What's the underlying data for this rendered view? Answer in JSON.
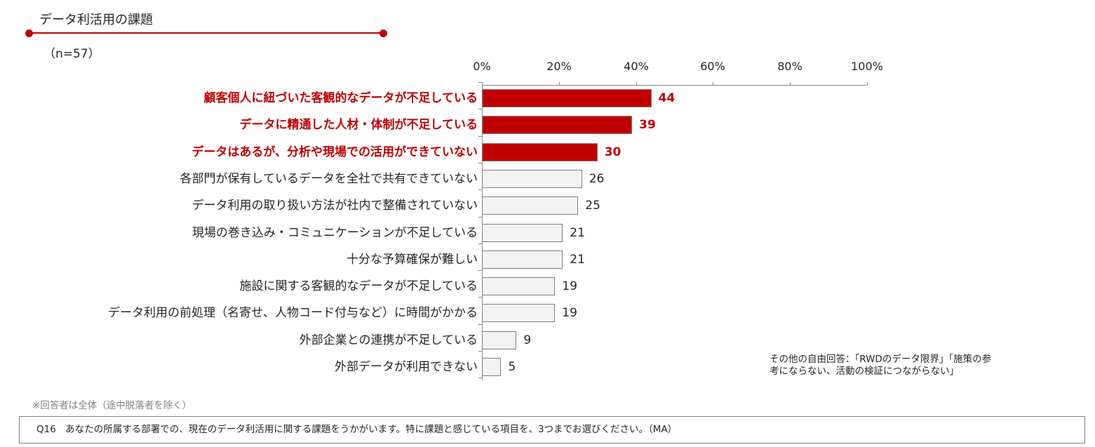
{
  "header": {
    "title": "データ利活用の課題",
    "sample": "（n=57）",
    "accent_color": "#c00000"
  },
  "chart_data": {
    "type": "bar",
    "orientation": "horizontal",
    "title": "データ利活用の課題",
    "subtitle": "（n=57）",
    "xlabel": "",
    "ylabel": "",
    "xlim": [
      0,
      100
    ],
    "x_ticks": [
      "0%",
      "20%",
      "40%",
      "60%",
      "80%",
      "100%"
    ],
    "unit": "%",
    "grid": false,
    "legend": null,
    "categories": [
      "顧客個人に紐づいた客観的なデータが不足している",
      "データに精通した人材・体制が不足している",
      "データはあるが、分析や現場での活用ができていない",
      "各部門が保有しているデータを全社で共有できていない",
      "データ利用の取り扱い方法が社内で整備されていない",
      "現場の巻き込み・コミュニケーションが不足している",
      "十分な予算確保が難しい",
      "施設に関する客観的なデータが不足している",
      "データ利用の前処理（名寄せ、人物コード付与など）に時間がかかる",
      "外部企業との連携が不足している",
      "外部データが利用できない"
    ],
    "values": [
      44,
      39,
      30,
      26,
      25,
      21,
      21,
      19,
      19,
      9,
      5
    ],
    "highlighted": [
      true,
      true,
      true,
      false,
      false,
      false,
      false,
      false,
      false,
      false,
      false
    ],
    "colors": {
      "highlight": "#c00000",
      "normal": "#f2f2f2",
      "border": "#7f7f7f"
    }
  },
  "annotations": {
    "other_answers": "その他の自由回答：「RWDのデータ限界」「施策の参考にならない、活動の検証につながらない」",
    "respondent_note": "※回答者は全体（途中脱落者を除く）",
    "question": "Q16　あなたの所属する部署での、現在のデータ利活用に関する課題をうかがいます。特に課題と感じている項目を、3つまでお選びください。（MA）"
  }
}
